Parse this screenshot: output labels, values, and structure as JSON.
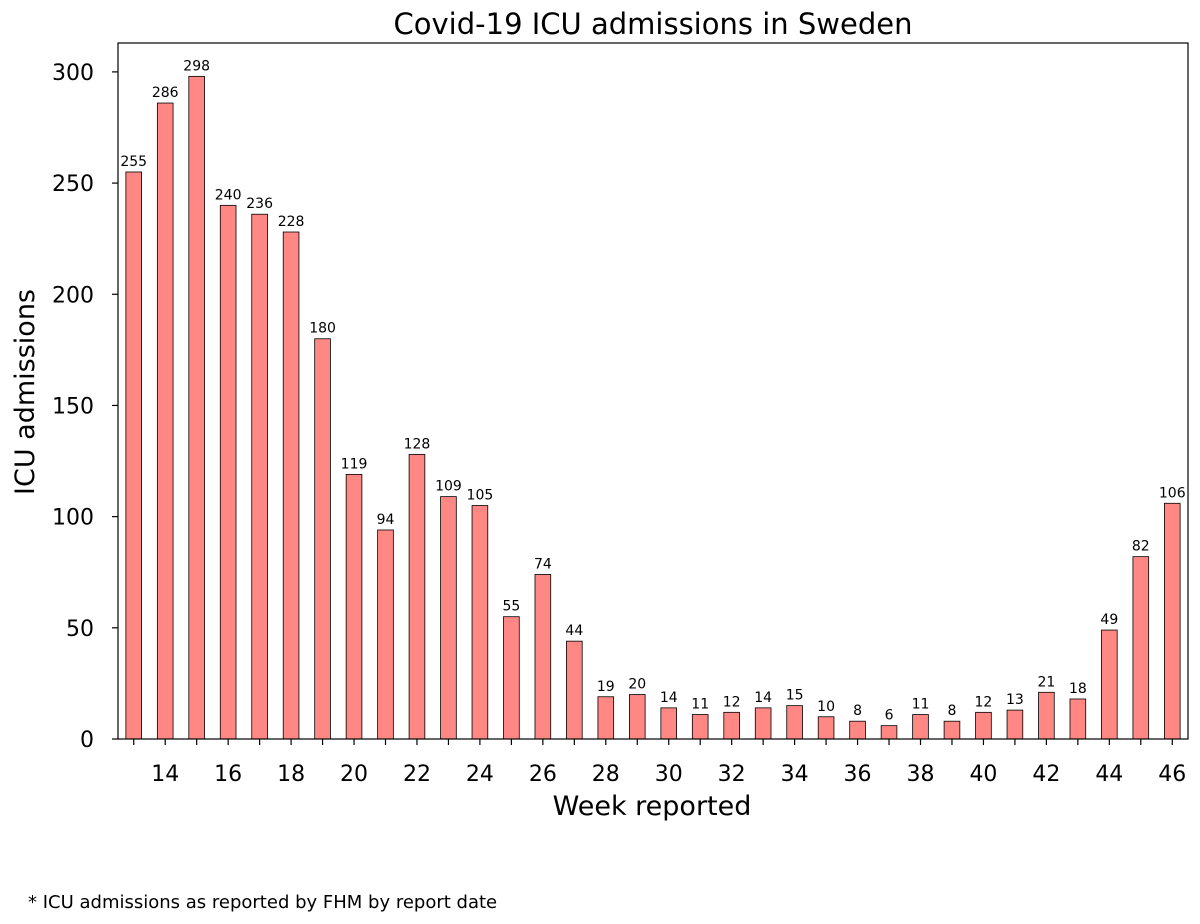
{
  "chart_data": {
    "type": "bar",
    "title": "Covid-19 ICU admissions in Sweden",
    "xlabel": "Week reported",
    "ylabel": "ICU admissions",
    "footnote": "* ICU admissions as reported by FHM by report date",
    "categories": [
      "13",
      "14",
      "15",
      "16",
      "17",
      "18",
      "19",
      "20",
      "21",
      "22",
      "23",
      "24",
      "25",
      "26",
      "27",
      "28",
      "29",
      "30",
      "31",
      "32",
      "33",
      "34",
      "35",
      "36",
      "37",
      "38",
      "39",
      "40",
      "41",
      "42",
      "43",
      "44",
      "45",
      "46"
    ],
    "values": [
      255,
      286,
      298,
      240,
      236,
      228,
      180,
      119,
      94,
      128,
      109,
      105,
      55,
      74,
      44,
      19,
      20,
      14,
      11,
      12,
      14,
      15,
      10,
      8,
      6,
      11,
      8,
      12,
      13,
      21,
      18,
      49,
      82,
      106
    ],
    "x_tick_labels": [
      "14",
      "16",
      "18",
      "20",
      "22",
      "24",
      "26",
      "28",
      "30",
      "32",
      "34",
      "36",
      "38",
      "40",
      "42",
      "44",
      "46"
    ],
    "y_ticks": [
      0,
      50,
      100,
      150,
      200,
      250,
      300
    ],
    "ylim": [
      0,
      313
    ],
    "grid": false,
    "bar_color": "#ff8884",
    "bar_edge_color": "#000000"
  }
}
